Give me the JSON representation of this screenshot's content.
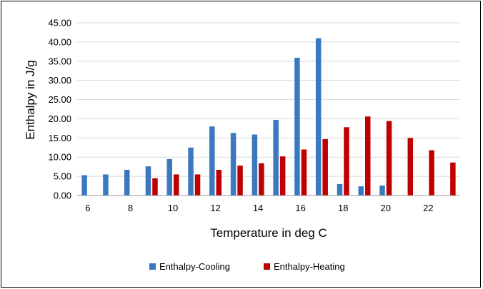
{
  "chart_data": {
    "type": "bar",
    "title": "",
    "xlabel": "Temperature in deg C",
    "ylabel": "Enthalpy in J/g",
    "ylim": [
      0,
      45
    ],
    "y_ticks": [
      "0.00",
      "5.00",
      "10.00",
      "15.00",
      "20.00",
      "25.00",
      "30.00",
      "35.00",
      "40.00",
      "45.00"
    ],
    "grid": true,
    "legend_position": "bottom",
    "categories": [
      6,
      7,
      8,
      9,
      10,
      11,
      12,
      13,
      14,
      15,
      16,
      17,
      18,
      19,
      20,
      21,
      22,
      23
    ],
    "x_tick_labels": [
      "6",
      "",
      "8",
      "",
      "10",
      "",
      "12",
      "",
      "14",
      "",
      "16",
      "",
      "18",
      "",
      "20",
      "",
      "22",
      ""
    ],
    "series": [
      {
        "name": "Enthalpy-Cooling",
        "color": "#3a78c0",
        "values": [
          5.3,
          5.5,
          6.7,
          7.6,
          9.5,
          12.5,
          18.0,
          16.3,
          15.9,
          19.7,
          35.9,
          41.0,
          3.0,
          2.4,
          2.6,
          null,
          null,
          null
        ]
      },
      {
        "name": "Enthalpy-Heating",
        "color": "#c00000",
        "values": [
          null,
          null,
          null,
          4.5,
          5.5,
          5.5,
          6.7,
          7.8,
          8.4,
          10.2,
          12.0,
          14.7,
          17.8,
          20.6,
          19.4,
          15.0,
          11.8,
          8.6
        ]
      }
    ]
  }
}
